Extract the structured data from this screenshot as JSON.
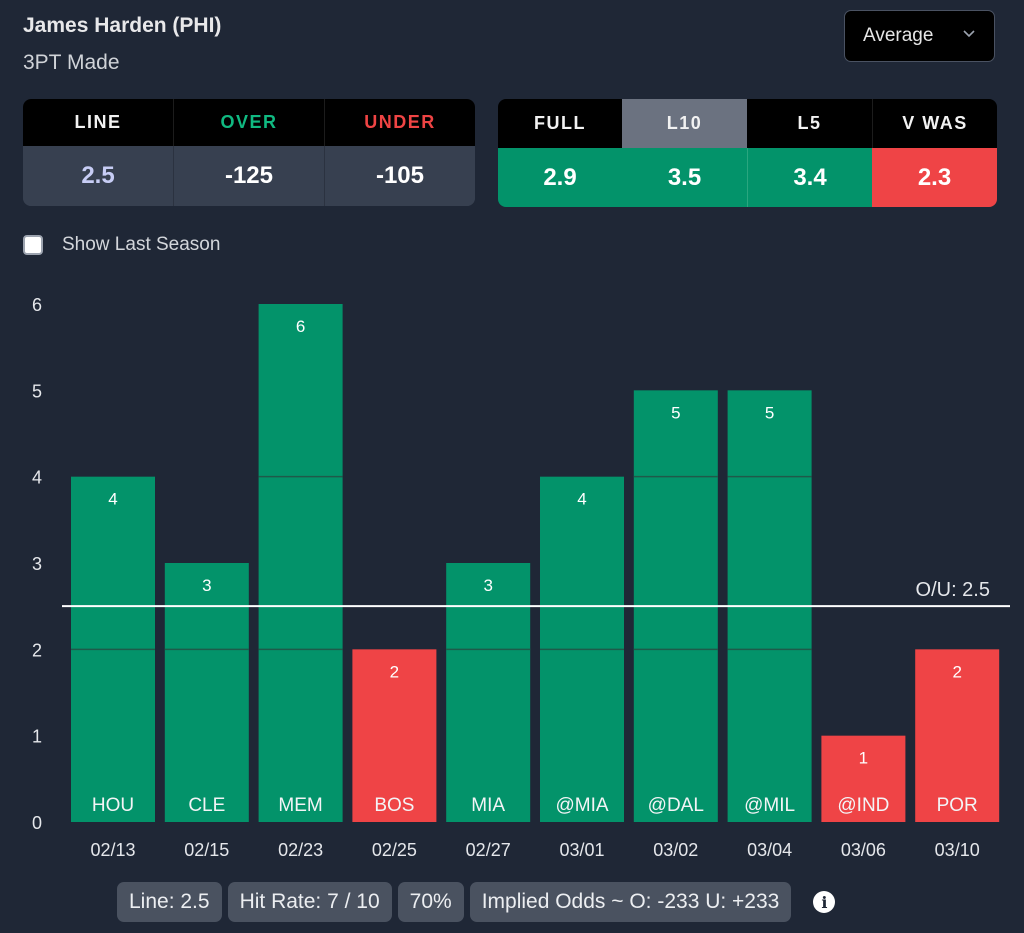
{
  "header": {
    "player": "James Harden (PHI)",
    "stat": "3PT Made",
    "dropdown": {
      "selected": "Average",
      "icon": "chevron-down-icon"
    }
  },
  "odds_table": {
    "headers": [
      "LINE",
      "OVER",
      "UNDER"
    ],
    "header_colors": [
      "#f2f2f2",
      "#10b981",
      "#ef4444"
    ],
    "values": [
      "2.5",
      "-125",
      "-105"
    ],
    "value_colors": [
      "#c7cdf5",
      "#ffffff",
      "#ffffff"
    ]
  },
  "average_table": {
    "headers": [
      "FULL",
      "L10",
      "L5",
      "V WAS"
    ],
    "active": "L10",
    "values": [
      "2.9",
      "3.5",
      "3.4",
      "2.3"
    ],
    "status": [
      "over",
      "over",
      "over",
      "under"
    ]
  },
  "show_last_season": {
    "label": "Show Last Season",
    "checked": false
  },
  "colors": {
    "over": "#03936a",
    "under": "#ef4446",
    "background": "#1f2736"
  },
  "chart_data": {
    "type": "bar",
    "categories": [
      "02/13",
      "02/15",
      "02/23",
      "02/25",
      "02/27",
      "03/01",
      "03/02",
      "03/04",
      "03/06",
      "03/10"
    ],
    "opponents": [
      "HOU",
      "CLE",
      "MEM",
      "BOS",
      "MIA",
      "@MIA",
      "@DAL",
      "@MIL",
      "@IND",
      "POR"
    ],
    "values": [
      4,
      3,
      6,
      2,
      3,
      4,
      5,
      5,
      1,
      2
    ],
    "yticks": [
      0,
      1,
      2,
      3,
      4,
      5,
      6
    ],
    "ylim": [
      0,
      6
    ],
    "line": {
      "value": 2.5,
      "label": "O/U: 2.5"
    },
    "title": "",
    "xlabel": "",
    "ylabel": ""
  },
  "summary": {
    "line": "Line: 2.5",
    "hit_rate": "Hit Rate: 7 / 10",
    "percent": "70%",
    "implied_odds": "Implied Odds ~ O: -233 U: +233",
    "info_icon": "info-icon"
  }
}
